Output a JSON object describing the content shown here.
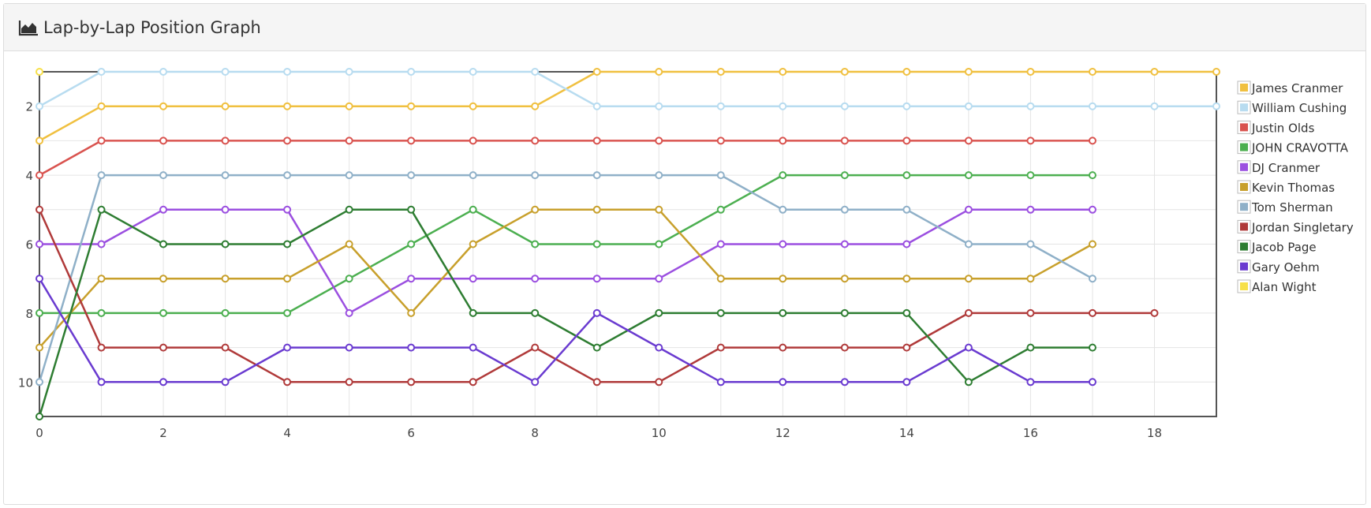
{
  "header": {
    "title": "Lap-by-Lap Position Graph",
    "icon": "area-chart-icon"
  },
  "chart_data": {
    "type": "line",
    "title": "",
    "xlabel": "",
    "ylabel": "",
    "xlim": [
      0,
      19
    ],
    "ylim": [
      1,
      11
    ],
    "y_reversed": true,
    "x_ticks": [
      0,
      2,
      4,
      6,
      8,
      10,
      12,
      14,
      16,
      18
    ],
    "y_ticks": [
      2,
      4,
      6,
      8,
      10
    ],
    "grid": true,
    "legend_position": "top-right",
    "series": [
      {
        "name": "James Cranmer",
        "color": "#f0c040",
        "points": [
          [
            0,
            3
          ],
          [
            1,
            2
          ],
          [
            2,
            2
          ],
          [
            3,
            2
          ],
          [
            4,
            2
          ],
          [
            5,
            2
          ],
          [
            6,
            2
          ],
          [
            7,
            2
          ],
          [
            8,
            2
          ],
          [
            9,
            1
          ],
          [
            10,
            1
          ],
          [
            11,
            1
          ],
          [
            12,
            1
          ],
          [
            13,
            1
          ],
          [
            14,
            1
          ],
          [
            15,
            1
          ],
          [
            16,
            1
          ],
          [
            17,
            1
          ],
          [
            18,
            1
          ],
          [
            19,
            1
          ]
        ]
      },
      {
        "name": "William Cushing",
        "color": "#b8dcf0",
        "points": [
          [
            0,
            2
          ],
          [
            1,
            1
          ],
          [
            2,
            1
          ],
          [
            3,
            1
          ],
          [
            4,
            1
          ],
          [
            5,
            1
          ],
          [
            6,
            1
          ],
          [
            7,
            1
          ],
          [
            8,
            1
          ],
          [
            9,
            2
          ],
          [
            10,
            2
          ],
          [
            11,
            2
          ],
          [
            12,
            2
          ],
          [
            13,
            2
          ],
          [
            14,
            2
          ],
          [
            15,
            2
          ],
          [
            16,
            2
          ],
          [
            17,
            2
          ],
          [
            18,
            2
          ],
          [
            19,
            2
          ]
        ]
      },
      {
        "name": "Justin Olds",
        "color": "#d9534f",
        "points": [
          [
            0,
            4
          ],
          [
            1,
            3
          ],
          [
            2,
            3
          ],
          [
            3,
            3
          ],
          [
            4,
            3
          ],
          [
            5,
            3
          ],
          [
            6,
            3
          ],
          [
            7,
            3
          ],
          [
            8,
            3
          ],
          [
            9,
            3
          ],
          [
            10,
            3
          ],
          [
            11,
            3
          ],
          [
            12,
            3
          ],
          [
            13,
            3
          ],
          [
            14,
            3
          ],
          [
            15,
            3
          ],
          [
            16,
            3
          ],
          [
            17,
            3
          ]
        ]
      },
      {
        "name": "JOHN CRAVOTTA",
        "color": "#4caf50",
        "points": [
          [
            0,
            8
          ],
          [
            1,
            8
          ],
          [
            2,
            8
          ],
          [
            3,
            8
          ],
          [
            4,
            8
          ],
          [
            5,
            7
          ],
          [
            6,
            6
          ],
          [
            7,
            5
          ],
          [
            8,
            6
          ],
          [
            9,
            6
          ],
          [
            10,
            6
          ],
          [
            11,
            5
          ],
          [
            12,
            4
          ],
          [
            13,
            4
          ],
          [
            14,
            4
          ],
          [
            15,
            4
          ],
          [
            16,
            4
          ],
          [
            17,
            4
          ]
        ]
      },
      {
        "name": "DJ Cranmer",
        "color": "#9b4fe0",
        "points": [
          [
            0,
            6
          ],
          [
            1,
            6
          ],
          [
            2,
            5
          ],
          [
            3,
            5
          ],
          [
            4,
            5
          ],
          [
            5,
            8
          ],
          [
            6,
            7
          ],
          [
            7,
            7
          ],
          [
            8,
            7
          ],
          [
            9,
            7
          ],
          [
            10,
            7
          ],
          [
            11,
            6
          ],
          [
            12,
            6
          ],
          [
            13,
            6
          ],
          [
            14,
            6
          ],
          [
            15,
            5
          ],
          [
            16,
            5
          ],
          [
            17,
            5
          ]
        ]
      },
      {
        "name": "Kevin Thomas",
        "color": "#c8a02c",
        "points": [
          [
            0,
            9
          ],
          [
            1,
            7
          ],
          [
            2,
            7
          ],
          [
            3,
            7
          ],
          [
            4,
            7
          ],
          [
            5,
            6
          ],
          [
            6,
            8
          ],
          [
            7,
            6
          ],
          [
            8,
            5
          ],
          [
            9,
            5
          ],
          [
            10,
            5
          ],
          [
            11,
            7
          ],
          [
            12,
            7
          ],
          [
            13,
            7
          ],
          [
            14,
            7
          ],
          [
            15,
            7
          ],
          [
            16,
            7
          ],
          [
            17,
            6
          ]
        ]
      },
      {
        "name": "Tom Sherman",
        "color": "#8fb0c8",
        "points": [
          [
            0,
            10
          ],
          [
            1,
            4
          ],
          [
            2,
            4
          ],
          [
            3,
            4
          ],
          [
            4,
            4
          ],
          [
            5,
            4
          ],
          [
            6,
            4
          ],
          [
            7,
            4
          ],
          [
            8,
            4
          ],
          [
            9,
            4
          ],
          [
            10,
            4
          ],
          [
            11,
            4
          ],
          [
            12,
            5
          ],
          [
            13,
            5
          ],
          [
            14,
            5
          ],
          [
            15,
            6
          ],
          [
            16,
            6
          ],
          [
            17,
            7
          ]
        ]
      },
      {
        "name": "Jordan Singletary",
        "color": "#b03a3a",
        "points": [
          [
            0,
            5
          ],
          [
            1,
            9
          ],
          [
            2,
            9
          ],
          [
            3,
            9
          ],
          [
            4,
            10
          ],
          [
            5,
            10
          ],
          [
            6,
            10
          ],
          [
            7,
            10
          ],
          [
            8,
            9
          ],
          [
            9,
            10
          ],
          [
            10,
            10
          ],
          [
            11,
            9
          ],
          [
            12,
            9
          ],
          [
            13,
            9
          ],
          [
            14,
            9
          ],
          [
            15,
            8
          ],
          [
            16,
            8
          ],
          [
            17,
            8
          ],
          [
            18,
            8
          ]
        ]
      },
      {
        "name": "Jacob Page",
        "color": "#2e7d32",
        "points": [
          [
            0,
            11
          ],
          [
            1,
            5
          ],
          [
            2,
            6
          ],
          [
            3,
            6
          ],
          [
            4,
            6
          ],
          [
            5,
            5
          ],
          [
            6,
            5
          ],
          [
            7,
            8
          ],
          [
            8,
            8
          ],
          [
            9,
            9
          ],
          [
            10,
            8
          ],
          [
            11,
            8
          ],
          [
            12,
            8
          ],
          [
            13,
            8
          ],
          [
            14,
            8
          ],
          [
            15,
            10
          ],
          [
            16,
            9
          ],
          [
            17,
            9
          ]
        ]
      },
      {
        "name": "Gary Oehm",
        "color": "#6a3bd0",
        "points": [
          [
            0,
            7
          ],
          [
            1,
            10
          ],
          [
            2,
            10
          ],
          [
            3,
            10
          ],
          [
            4,
            9
          ],
          [
            5,
            9
          ],
          [
            6,
            9
          ],
          [
            7,
            9
          ],
          [
            8,
            10
          ],
          [
            9,
            8
          ],
          [
            10,
            9
          ],
          [
            11,
            10
          ],
          [
            12,
            10
          ],
          [
            13,
            10
          ],
          [
            14,
            10
          ],
          [
            15,
            9
          ],
          [
            16,
            10
          ],
          [
            17,
            10
          ]
        ]
      },
      {
        "name": "Alan Wight",
        "color": "#f7e04a",
        "points": [
          [
            0,
            1
          ]
        ]
      }
    ]
  }
}
